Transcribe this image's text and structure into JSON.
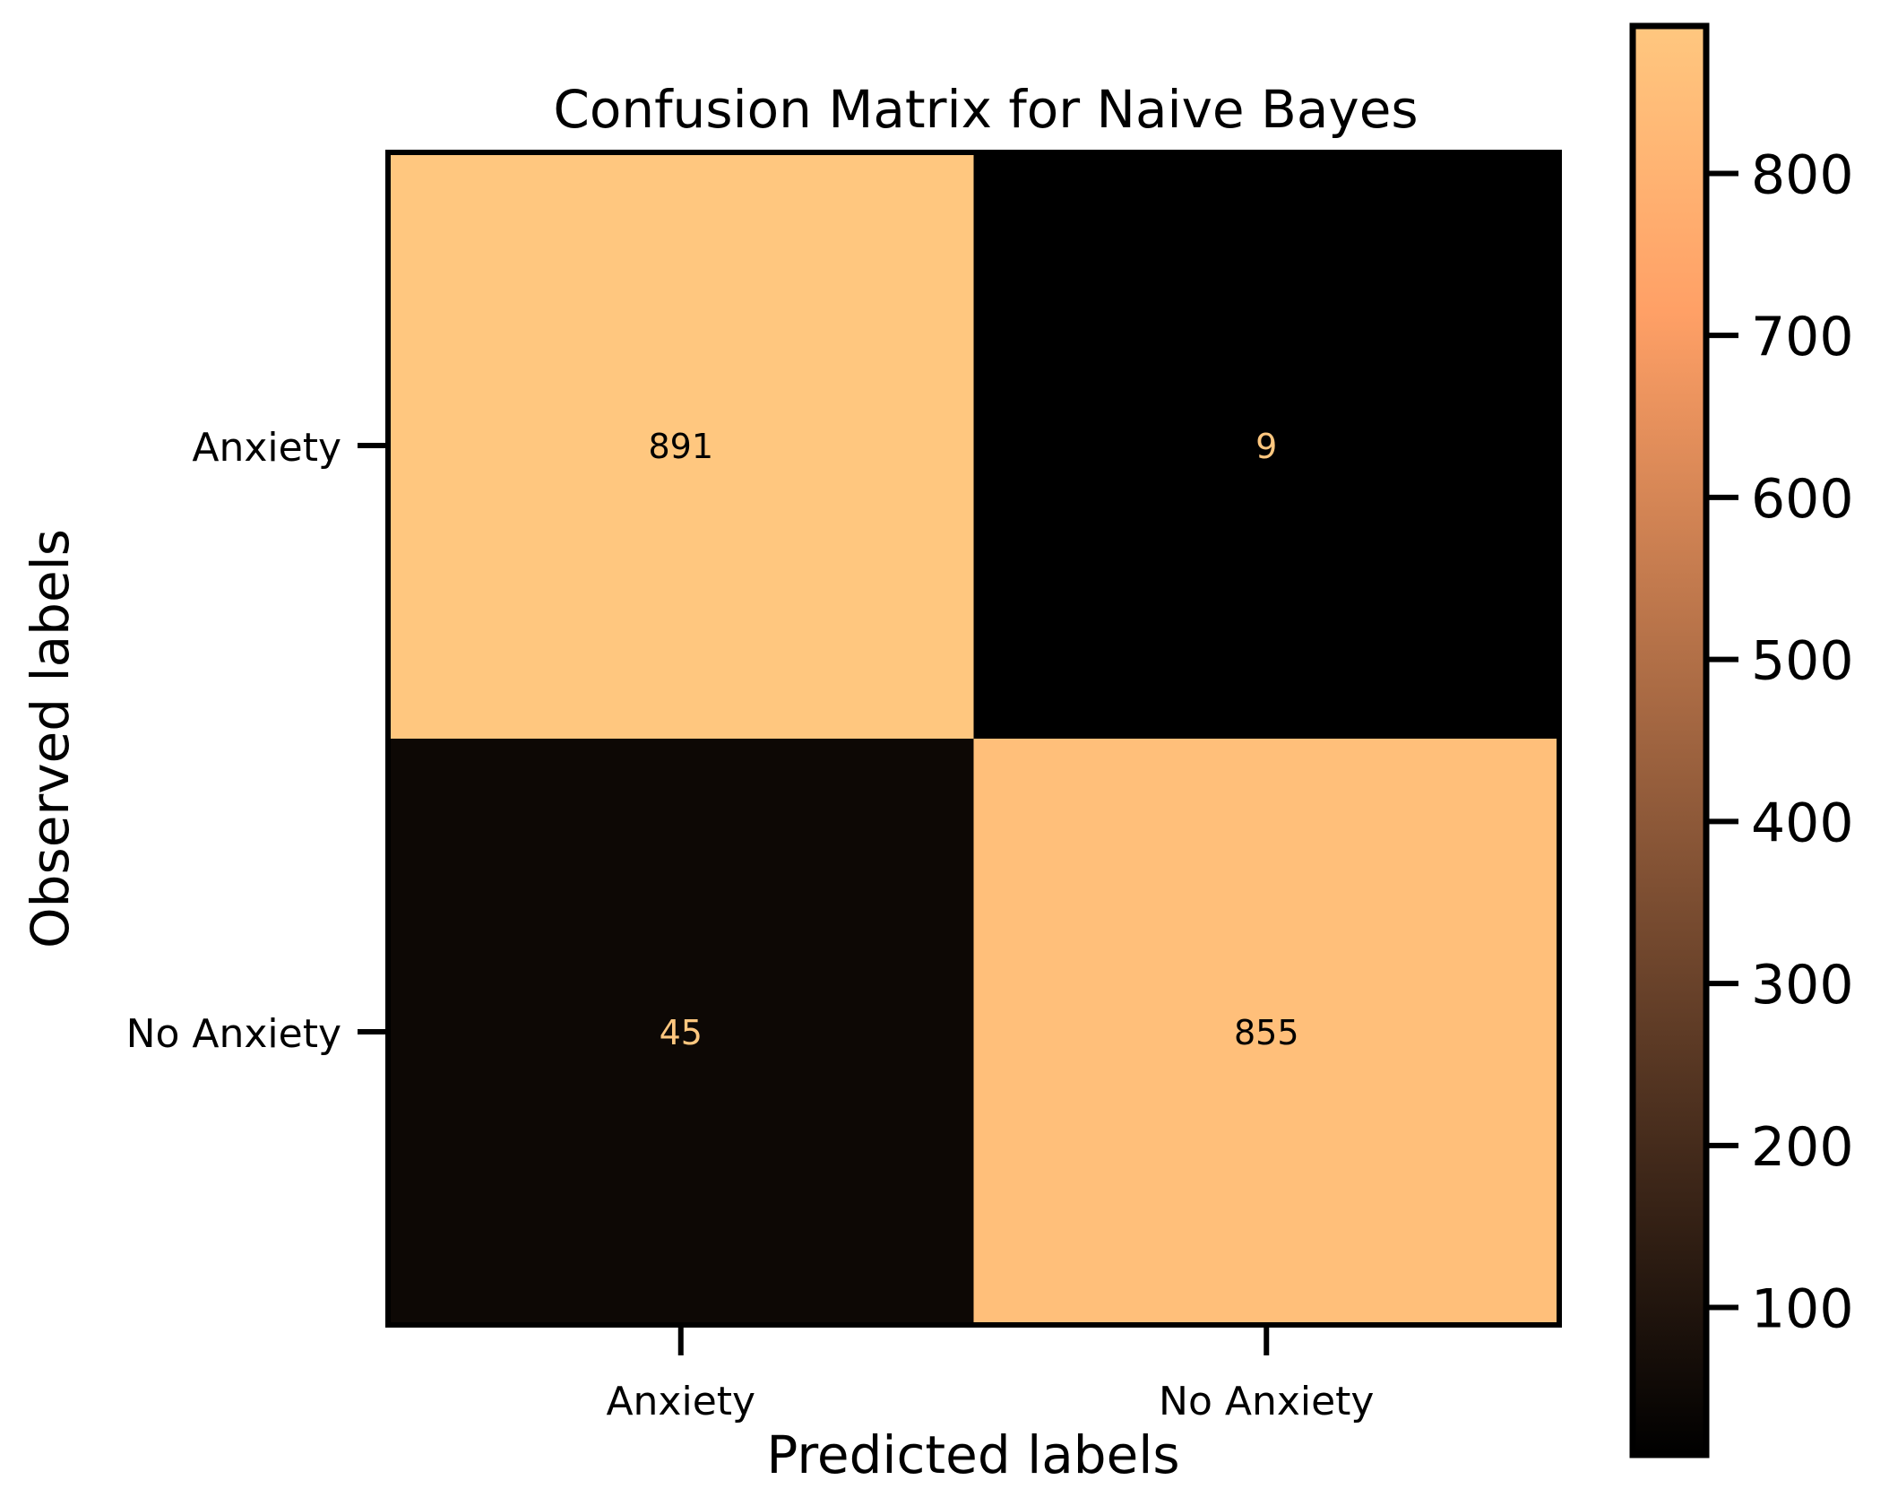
{
  "chart_data": {
    "type": "heatmap",
    "title": "Confusion Matrix for Naive Bayes",
    "xlabel": "Predicted labels",
    "ylabel": "Observed labels",
    "x_categories": [
      "Anxiety",
      "No Anxiety"
    ],
    "y_categories": [
      "Anxiety",
      "No Anxiety"
    ],
    "matrix": [
      [
        891,
        9
      ],
      [
        45,
        855
      ]
    ],
    "colormap": "copper",
    "colorbar": {
      "min": 9,
      "max": 891,
      "ticks": [
        100,
        200,
        300,
        400,
        500,
        600,
        700,
        800
      ]
    },
    "colors": {
      "low": "#000000",
      "high": "#ffc77f",
      "text_on_dark": "#ffc77f",
      "text_on_light": "#000000"
    }
  }
}
